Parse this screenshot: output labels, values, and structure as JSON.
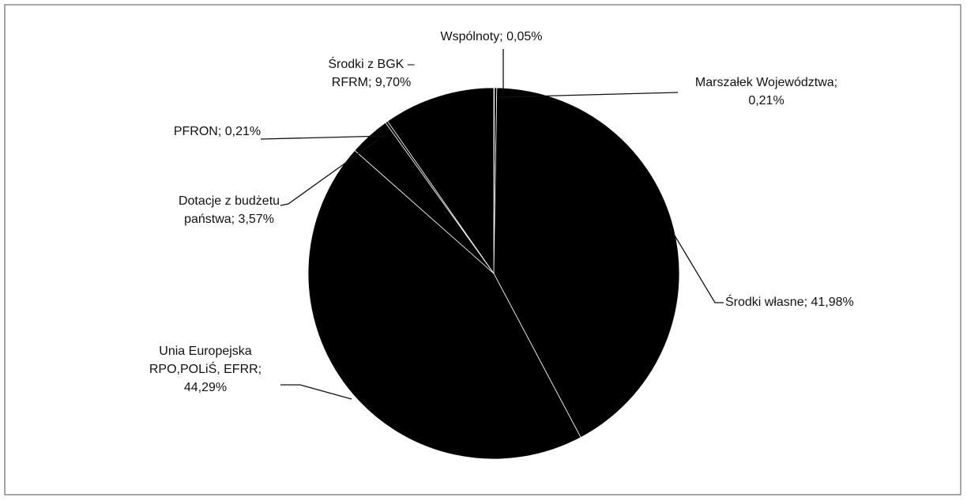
{
  "chart_data": {
    "type": "pie",
    "categories": [
      "Wspólnoty",
      "Marszałek Województwa",
      "Środki własne",
      "Unia Europejska RPO,POLiŚ, EFRR",
      "Dotacje z budżetu państwa",
      "PFRON",
      "Środki z BGK – RFRM"
    ],
    "labels": [
      [
        "Wspólnoty; 0,05%"
      ],
      [
        "Marszałek Województwa;",
        "0,21%"
      ],
      [
        "Środki własne; 41,98%"
      ],
      [
        "Unia Europejska",
        "RPO,POLiŚ, EFRR;",
        "44,29%"
      ],
      [
        "Dotacje z budżetu",
        "państwa; 3,57%"
      ],
      [
        "PFRON; 0,21%"
      ],
      [
        "Środki z BGK –",
        "RFRM; 9,70%"
      ]
    ],
    "values": [
      0.05,
      0.21,
      41.98,
      44.29,
      3.57,
      0.21,
      9.7
    ],
    "color": "#000000"
  }
}
